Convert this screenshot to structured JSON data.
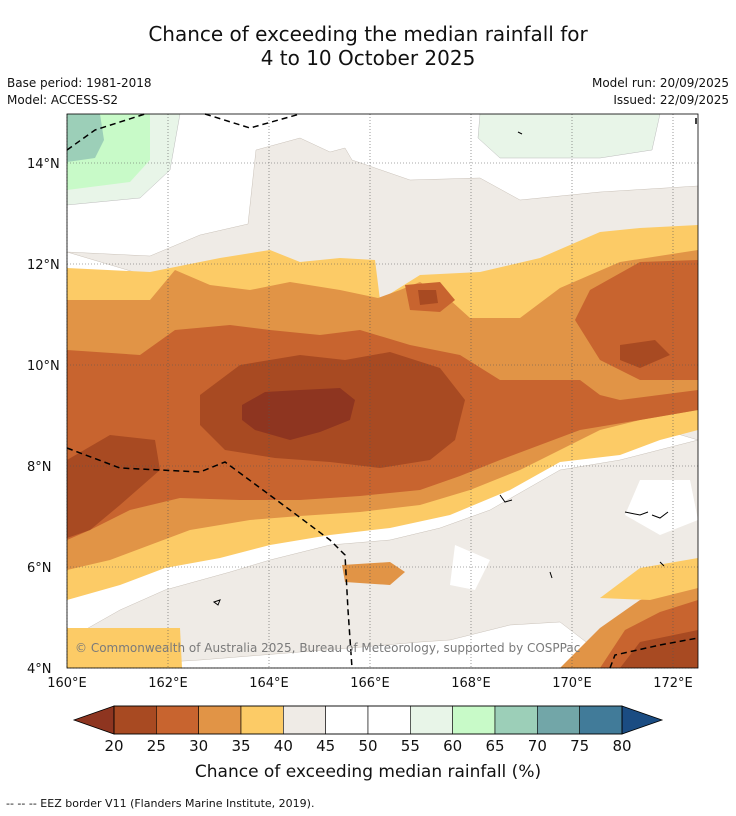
{
  "header": {
    "title_line1": "Chance of exceeding the median rainfall for",
    "title_line2": "4 to 10 October 2025",
    "base_period": "Base period: 1981-2018",
    "model": "Model: ACCESS-S2",
    "model_run": "Model run: 20/09/2025",
    "issued": "Issued: 22/09/2025"
  },
  "map": {
    "lat_labels": [
      "14°N",
      "12°N",
      "10°N",
      "8°N",
      "6°N",
      "4°N"
    ],
    "lon_labels": [
      "160°E",
      "162°E",
      "164°E",
      "166°E",
      "168°E",
      "170°E",
      "172°E"
    ],
    "copyright": "© Commonwealth of Australia 2025, Bureau of Meteorology, supported by COSPPac"
  },
  "colorbar": {
    "ticks": [
      "20",
      "25",
      "30",
      "35",
      "40",
      "45",
      "50",
      "55",
      "60",
      "65",
      "70",
      "75",
      "80"
    ],
    "colors": [
      "#a84a22",
      "#c8642f",
      "#e19446",
      "#fccb66",
      "#efebe6",
      "#ffffff",
      "#ffffff",
      "#e8f5e8",
      "#c8fac8",
      "#9ccfb8",
      "#72a6a8",
      "#417b99"
    ],
    "below_color": "#8e3520",
    "above_color": "#1b4c82",
    "title": "Chance of exceeding median rainfall (%)"
  },
  "legend": {
    "eez": "--  --  -- EEZ border V11 (Flanders Marine Institute, 2019)."
  }
}
